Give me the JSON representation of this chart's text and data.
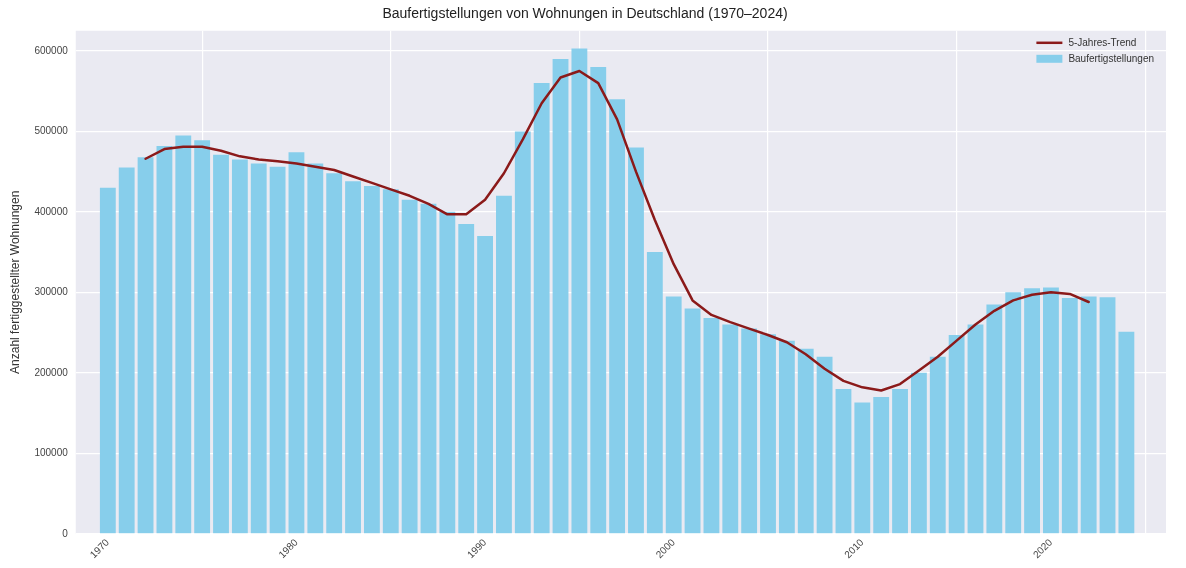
{
  "chart_data": {
    "type": "bar",
    "title": "Baufertigstellungen von Wohnungen in Deutschland (1970–2024)",
    "ylabel": "Anzahl fertiggestellter Wohnungen",
    "xlim": [
      1968.3,
      2026.1
    ],
    "xticks": [
      1970,
      1980,
      1990,
      2000,
      2010,
      2020
    ],
    "ylim": [
      0,
      625000
    ],
    "yticks": [
      0,
      100000,
      200000,
      300000,
      400000,
      500000,
      600000
    ],
    "grid": true,
    "legend": "top right",
    "series": [
      {
        "name": "5-Jahres-Trend",
        "type": "line",
        "color": "#8b1a1a",
        "marker": "none",
        "line_style": "solid",
        "x": [
          1972,
          1973,
          1974,
          1975,
          1976,
          1977,
          1978,
          1979,
          1980,
          1981,
          1982,
          1983,
          1984,
          1985,
          1986,
          1987,
          1988,
          1989,
          1990,
          1991,
          1992,
          1993,
          1994,
          1995,
          1996,
          1997,
          1998,
          1999,
          2000,
          2001,
          2002,
          2003,
          2004,
          2005,
          2006,
          2007,
          2008,
          2009,
          2010,
          2011,
          2012,
          2013,
          2014,
          2015,
          2016,
          2017,
          2018,
          2019,
          2020,
          2021,
          2022
        ],
        "values": [
          466000,
          478000,
          481000,
          481000,
          476000,
          469000,
          465000,
          463000,
          460000,
          456000,
          452000,
          444000,
          436000,
          428000,
          420000,
          410000,
          397000,
          397000,
          415000,
          448000,
          490000,
          535000,
          567000,
          575000,
          560000,
          515000,
          450000,
          390000,
          335000,
          290000,
          272000,
          263000,
          255000,
          247000,
          238000,
          223000,
          205000,
          190000,
          182000,
          178000,
          186000,
          203000,
          220000,
          240000,
          260000,
          277000,
          290000,
          297000,
          300000,
          298000,
          288000
        ]
      },
      {
        "name": "Baufertigstellungen",
        "color": "#87ceeb",
        "x": [
          1970,
          1971,
          1972,
          1973,
          1974,
          1975,
          1976,
          1977,
          1978,
          1979,
          1980,
          1981,
          1982,
          1983,
          1984,
          1985,
          1986,
          1987,
          1988,
          1989,
          1990,
          1991,
          1992,
          1993,
          1994,
          1995,
          1996,
          1997,
          1998,
          1999,
          2000,
          2001,
          2002,
          2003,
          2004,
          2005,
          2006,
          2007,
          2008,
          2009,
          2010,
          2011,
          2012,
          2013,
          2014,
          2015,
          2016,
          2017,
          2018,
          2019,
          2020,
          2021,
          2022,
          2023,
          2024
        ],
        "values": [
          430000,
          455000,
          468000,
          482000,
          495000,
          489000,
          471000,
          465000,
          460000,
          456000,
          474000,
          460000,
          448000,
          438000,
          432000,
          428000,
          415000,
          410000,
          400000,
          385000,
          370000,
          420000,
          500000,
          560000,
          590000,
          603000,
          580000,
          540000,
          480000,
          350000,
          295000,
          280000,
          268000,
          260000,
          255000,
          248000,
          240000,
          230000,
          220000,
          180000,
          163000,
          170000,
          180000,
          200000,
          220000,
          247000,
          260000,
          285000,
          300000,
          305000,
          306000,
          293000,
          295000,
          294000,
          251000
        ]
      }
    ]
  }
}
